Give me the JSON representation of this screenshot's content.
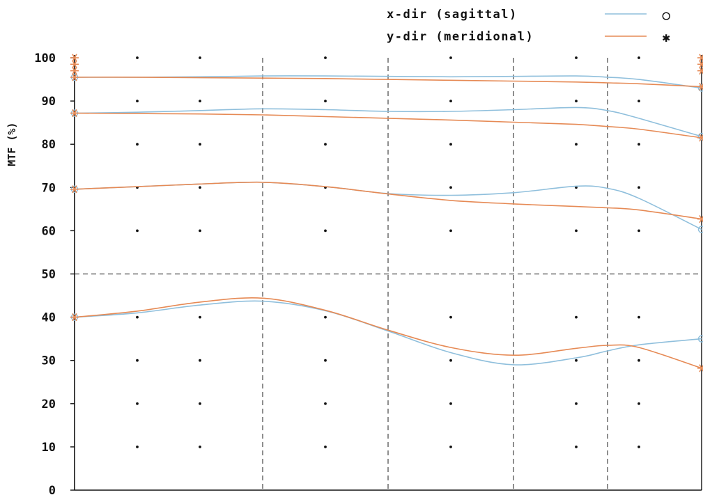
{
  "chart_data": {
    "type": "line",
    "title": "",
    "xlabel": "",
    "ylabel": "MTF (%)",
    "ylim": [
      0,
      100
    ],
    "xlim": [
      0,
      1
    ],
    "x_ticks_shown": false,
    "yticks": [
      0,
      10,
      20,
      30,
      40,
      50,
      60,
      70,
      80,
      90,
      100
    ],
    "dashed_vertical_gridlines_at_x": [
      0.3,
      0.5,
      0.7,
      0.85
    ],
    "dashed_horizontal_gridline_at_y": 50,
    "dot_grid_x": [
      0.1,
      0.2,
      0.4,
      0.6,
      0.8,
      0.9
    ],
    "dot_grid_y": [
      10,
      20,
      30,
      40,
      60,
      70,
      80,
      90,
      100
    ],
    "legend": {
      "position": "top-right",
      "entries": [
        {
          "label": "x-dir (sagittal)",
          "marker": "○",
          "color": "#8fbfdc"
        },
        {
          "label": "y-dir (meridional)",
          "marker": "✱",
          "color": "#e68a55"
        }
      ]
    },
    "series": [
      {
        "name": "x-dir (sagittal)",
        "group": "1",
        "color": "#8fbfdc",
        "x": [
          0,
          0.1,
          0.2,
          0.3,
          0.4,
          0.5,
          0.6,
          0.7,
          0.8,
          0.85,
          0.9,
          1.0
        ],
        "y": [
          95.5,
          95.5,
          95.6,
          95.8,
          95.8,
          95.7,
          95.6,
          95.7,
          95.8,
          95.5,
          95.0,
          93.0
        ]
      },
      {
        "name": "y-dir (meridional)",
        "group": "1",
        "color": "#e68a55",
        "x": [
          0,
          0.1,
          0.2,
          0.3,
          0.4,
          0.5,
          0.6,
          0.7,
          0.8,
          0.85,
          0.9,
          1.0
        ],
        "y": [
          95.5,
          95.5,
          95.4,
          95.3,
          95.2,
          95.0,
          94.8,
          94.6,
          94.4,
          94.2,
          94.0,
          93.3
        ]
      },
      {
        "name": "x-dir (sagittal)",
        "group": "2",
        "color": "#8fbfdc",
        "x": [
          0,
          0.1,
          0.2,
          0.3,
          0.4,
          0.5,
          0.6,
          0.7,
          0.8,
          0.85,
          0.9,
          1.0
        ],
        "y": [
          87.2,
          87.4,
          87.8,
          88.2,
          88.0,
          87.6,
          87.6,
          88.0,
          88.5,
          87.8,
          86.0,
          81.8
        ]
      },
      {
        "name": "y-dir (meridional)",
        "group": "2",
        "color": "#e68a55",
        "x": [
          0,
          0.1,
          0.2,
          0.3,
          0.4,
          0.5,
          0.6,
          0.7,
          0.8,
          0.85,
          0.9,
          1.0
        ],
        "y": [
          87.2,
          87.1,
          87.0,
          86.8,
          86.4,
          86.0,
          85.6,
          85.1,
          84.6,
          84.1,
          83.5,
          81.5
        ]
      },
      {
        "name": "x-dir (sagittal)",
        "group": "3",
        "color": "#8fbfdc",
        "x": [
          0,
          0.1,
          0.2,
          0.3,
          0.4,
          0.5,
          0.6,
          0.7,
          0.8,
          0.85,
          0.9,
          1.0
        ],
        "y": [
          69.6,
          70.2,
          70.8,
          71.2,
          70.2,
          68.6,
          68.2,
          68.8,
          70.3,
          69.8,
          67.5,
          60.3
        ]
      },
      {
        "name": "y-dir (meridional)",
        "group": "3",
        "color": "#e68a55",
        "x": [
          0,
          0.1,
          0.2,
          0.3,
          0.4,
          0.5,
          0.6,
          0.7,
          0.8,
          0.85,
          0.9,
          1.0
        ],
        "y": [
          69.6,
          70.2,
          70.8,
          71.2,
          70.2,
          68.5,
          67.0,
          66.2,
          65.6,
          65.3,
          64.8,
          62.7
        ]
      },
      {
        "name": "x-dir (sagittal)",
        "group": "4",
        "color": "#8fbfdc",
        "x": [
          0,
          0.1,
          0.2,
          0.3,
          0.4,
          0.5,
          0.6,
          0.7,
          0.8,
          0.85,
          0.9,
          1.0
        ],
        "y": [
          40.0,
          41.0,
          42.8,
          43.7,
          41.5,
          36.8,
          31.8,
          29.0,
          30.6,
          32.2,
          33.6,
          35.0
        ]
      },
      {
        "name": "y-dir (meridional)",
        "group": "4",
        "color": "#e68a55",
        "x": [
          0,
          0.1,
          0.2,
          0.3,
          0.4,
          0.5,
          0.6,
          0.7,
          0.8,
          0.85,
          0.9,
          1.0
        ],
        "y": [
          40.0,
          41.4,
          43.5,
          44.4,
          41.6,
          37.0,
          33.0,
          31.2,
          32.8,
          33.5,
          33.0,
          28.2
        ]
      }
    ]
  }
}
